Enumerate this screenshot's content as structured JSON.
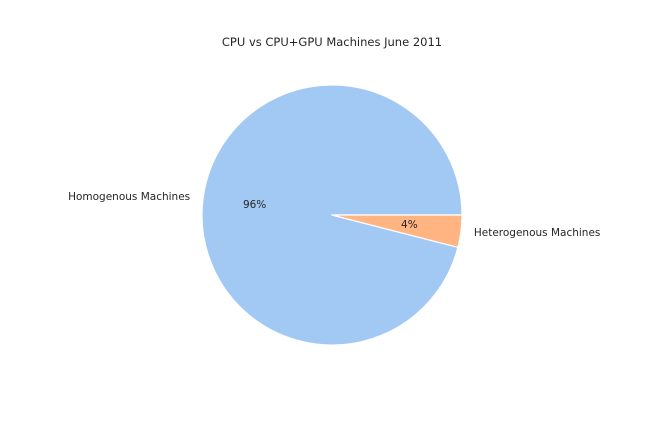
{
  "chart_data": {
    "type": "pie",
    "title": "CPU vs CPU+GPU Machines June 2011",
    "categories": [
      "Homogenous Machines",
      "Heterogenous Machines"
    ],
    "values": [
      96,
      4
    ],
    "value_labels": [
      "96%",
      "4%"
    ],
    "colors": [
      "#a1c9f4",
      "#ffb482"
    ],
    "start_angle_deg": 0,
    "direction": "counterclockwise",
    "legend": "none"
  }
}
